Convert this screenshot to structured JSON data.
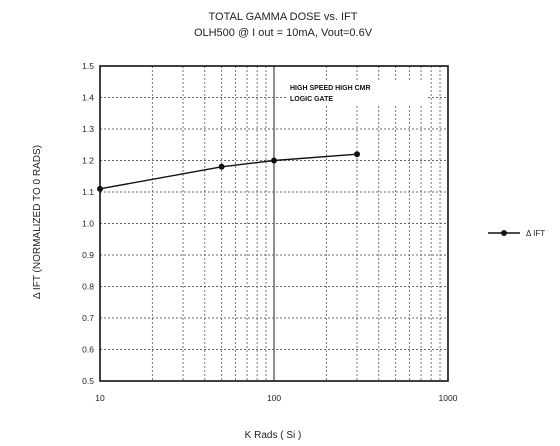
{
  "chart_data": {
    "type": "line",
    "title": "TOTAL GAMMA DOSE vs. IFT",
    "subtitle": "OLH500 @ I out = 10mA, Vout=0.6V",
    "xlabel": "K Rads ( Si )",
    "ylabel": "Δ IFT (NORMALIZED TO 0 RADS)",
    "x_scale": "log",
    "xlim": [
      10,
      1000
    ],
    "ylim": [
      0.5,
      1.5
    ],
    "x_ticks": [
      "10",
      "100",
      "1000"
    ],
    "y_ticks": [
      "0.5",
      "0.6",
      "0.7",
      "0.8",
      "0.9",
      "1.0",
      "1.1",
      "1.2",
      "1.3",
      "1.4",
      "1.5"
    ],
    "grid": true,
    "legend_position": "right",
    "annotation": [
      "HIGH SPEED HIGH CMR",
      "LOGIC GATE"
    ],
    "series": [
      {
        "name": "Δ IFT",
        "x": [
          10,
          50,
          100,
          300
        ],
        "y": [
          1.11,
          1.18,
          1.2,
          1.22
        ]
      }
    ]
  }
}
